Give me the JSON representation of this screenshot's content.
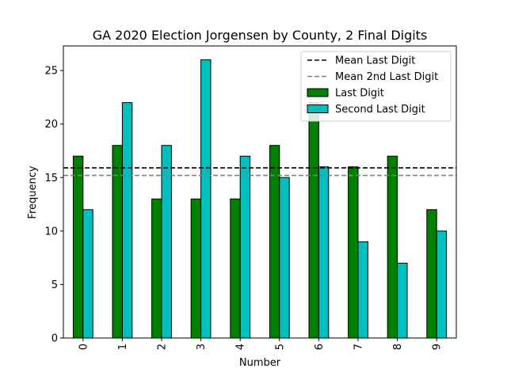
{
  "chart_data": {
    "type": "bar",
    "title": "GA 2020 Election Jorgensen by County, 2 Final Digits",
    "xlabel": "Number",
    "ylabel": "Frequency",
    "categories": [
      "0",
      "1",
      "2",
      "3",
      "4",
      "5",
      "6",
      "7",
      "8",
      "9"
    ],
    "series": [
      {
        "name": "Last Digit",
        "color": "#008000",
        "values": [
          17,
          18,
          13,
          13,
          13,
          18,
          22,
          16,
          17,
          12
        ]
      },
      {
        "name": "Second Last Digit",
        "color": "#00bfbf",
        "values": [
          12,
          22,
          18,
          26,
          17,
          15,
          16,
          9,
          7,
          10
        ]
      }
    ],
    "reference_lines": [
      {
        "name": "Mean Last Digit",
        "value": 15.9,
        "color": "#000000",
        "style": "dashed"
      },
      {
        "name": "Mean 2nd Last Digit",
        "value": 15.2,
        "color": "#808080",
        "style": "dashed"
      }
    ],
    "ylim": [
      0,
      27.3
    ],
    "yticks": [
      0,
      5,
      10,
      15,
      20,
      25
    ],
    "grid": false,
    "legend_position": "top-right",
    "xtick_rotation": "vertical"
  }
}
